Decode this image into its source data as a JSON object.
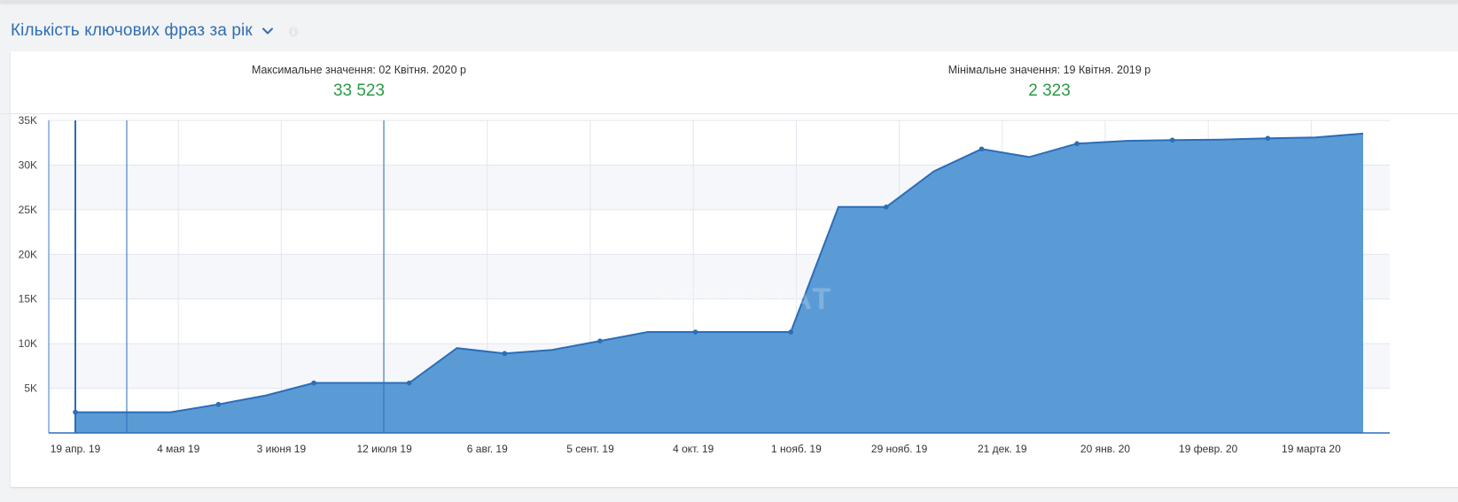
{
  "header": {
    "title": "Кількість ключових фраз за рік"
  },
  "stats": {
    "max": {
      "label": "Максимальне значення: 02 Квітня. 2020 р",
      "value": "33 523"
    },
    "min": {
      "label": "Мінімальне значення: 19 Квітня. 2019 р",
      "value": "2 323"
    }
  },
  "watermark": "SERPSTAT",
  "icons": {
    "dropdown": "chevron-down-icon",
    "info": "info-icon"
  },
  "colors": {
    "title": "#2f6fb3",
    "stat_value": "#2b9a46",
    "area_fill": "#5b9bd5",
    "line": "#2a6db8"
  },
  "chart_data": {
    "type": "area",
    "title": "",
    "xlabel": "",
    "ylabel": "",
    "ylim": [
      0,
      35000
    ],
    "yticks": [
      5000,
      10000,
      15000,
      20000,
      25000,
      30000,
      35000
    ],
    "ytick_labels": [
      "5K",
      "10K",
      "15K",
      "20K",
      "25K",
      "30K",
      "35K"
    ],
    "x_tick_labels": [
      "19 апр. 19",
      "4 мая 19",
      "3 июня 19",
      "12 июля 19",
      "6 авг. 19",
      "5 сент. 19",
      "4 окт. 19",
      "1 нояб. 19",
      "29 нояб. 19",
      "21 дек. 19",
      "20 янв. 20",
      "19 февр. 20",
      "19 марта 20"
    ],
    "grid": true,
    "series": [
      {
        "values": [
          2323,
          2323,
          2323,
          3200,
          4200,
          5600,
          5600,
          5600,
          9500,
          8900,
          9300,
          10300,
          11300,
          11300,
          11300,
          11300,
          25300,
          25300,
          29300,
          31800,
          30900,
          32400,
          32700,
          32800,
          32850,
          33000,
          33100,
          33523
        ]
      }
    ],
    "marker_indices": [
      0,
      3,
      5,
      7,
      9,
      11,
      13,
      15,
      17,
      19,
      21,
      23,
      25
    ],
    "vertical_markers": [
      "19 апр. 19",
      "12 июля 19"
    ]
  }
}
